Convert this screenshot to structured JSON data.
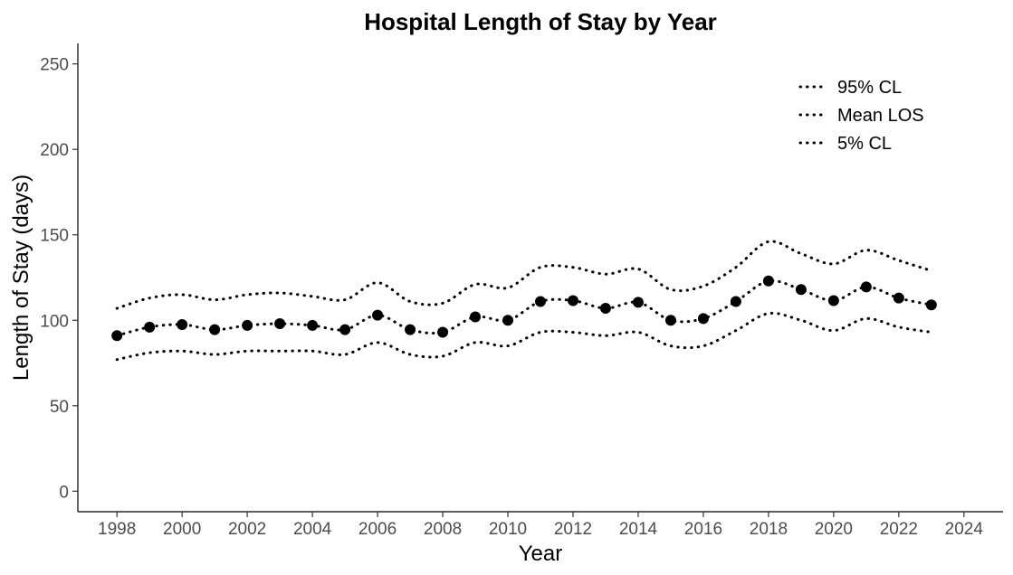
{
  "chart_data": {
    "type": "line",
    "title": "Hospital Length of Stay by Year",
    "xlabel": "Year",
    "ylabel": "Length of Stay (days)",
    "xlim": [
      1996.8,
      2025.2
    ],
    "ylim": [
      -12,
      262
    ],
    "x_ticks": [
      1998,
      2000,
      2002,
      2004,
      2006,
      2008,
      2010,
      2012,
      2014,
      2016,
      2018,
      2020,
      2022,
      2024
    ],
    "y_ticks": [
      0,
      50,
      100,
      150,
      200,
      250
    ],
    "grid": false,
    "legend_position": "top-right",
    "x": [
      1998,
      1999,
      2000,
      2001,
      2002,
      2003,
      2004,
      2005,
      2006,
      2007,
      2008,
      2009,
      2010,
      2011,
      2012,
      2013,
      2014,
      2015,
      2016,
      2017,
      2018,
      2019,
      2020,
      2021,
      2022,
      2023
    ],
    "series": [
      {
        "name": "95% CL",
        "line_style": "dotted",
        "color": "#000000",
        "values": [
          107,
          113,
          115,
          112,
          115,
          116,
          114,
          112,
          122,
          111,
          110,
          121,
          119,
          131,
          131,
          127,
          130,
          118,
          120,
          131,
          146,
          139,
          133,
          141,
          135,
          129
        ]
      },
      {
        "name": "Mean LOS",
        "line_style": "dotted",
        "color": "#000000",
        "markers": true,
        "values": [
          91,
          96,
          97.5,
          94.5,
          97,
          98,
          97,
          94.5,
          103,
          94.5,
          93,
          102,
          100,
          111,
          111.5,
          107,
          110.5,
          100,
          101,
          111,
          123,
          118,
          111.5,
          119.5,
          113,
          109
        ]
      },
      {
        "name": "5% CL",
        "line_style": "dotted",
        "color": "#000000",
        "values": [
          77,
          81,
          82,
          80,
          82,
          82,
          82,
          80,
          87,
          80,
          79,
          87,
          85,
          93,
          93,
          91,
          93,
          85,
          85,
          94,
          104,
          100,
          94,
          101,
          96,
          93
        ]
      }
    ]
  }
}
